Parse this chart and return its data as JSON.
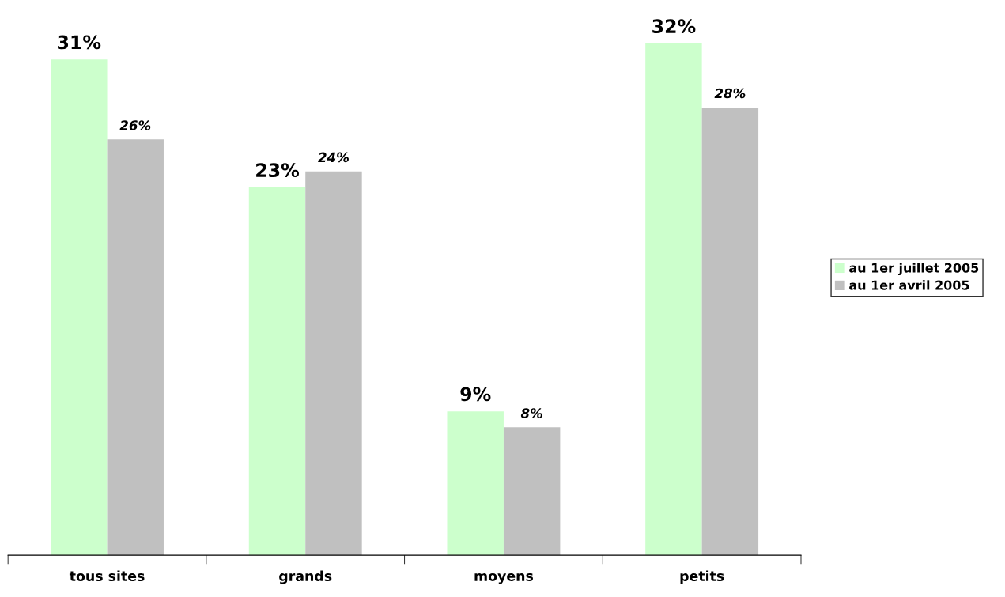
{
  "chart_data": {
    "type": "bar",
    "categories": [
      "tous sites",
      "grands",
      "moyens",
      "petits"
    ],
    "series": [
      {
        "name": "au 1er juillet 2005",
        "color": "#ccffcc",
        "values": [
          31,
          23,
          9,
          32
        ],
        "value_labels": [
          "31%",
          "23%",
          "9%",
          "32%"
        ]
      },
      {
        "name": "au 1er avril 2005",
        "color": "#c0c0c0",
        "values": [
          26,
          24,
          8,
          28
        ],
        "value_labels": [
          "26%",
          "24%",
          "8%",
          "28%"
        ]
      }
    ],
    "legend": "right",
    "grid": false
  }
}
